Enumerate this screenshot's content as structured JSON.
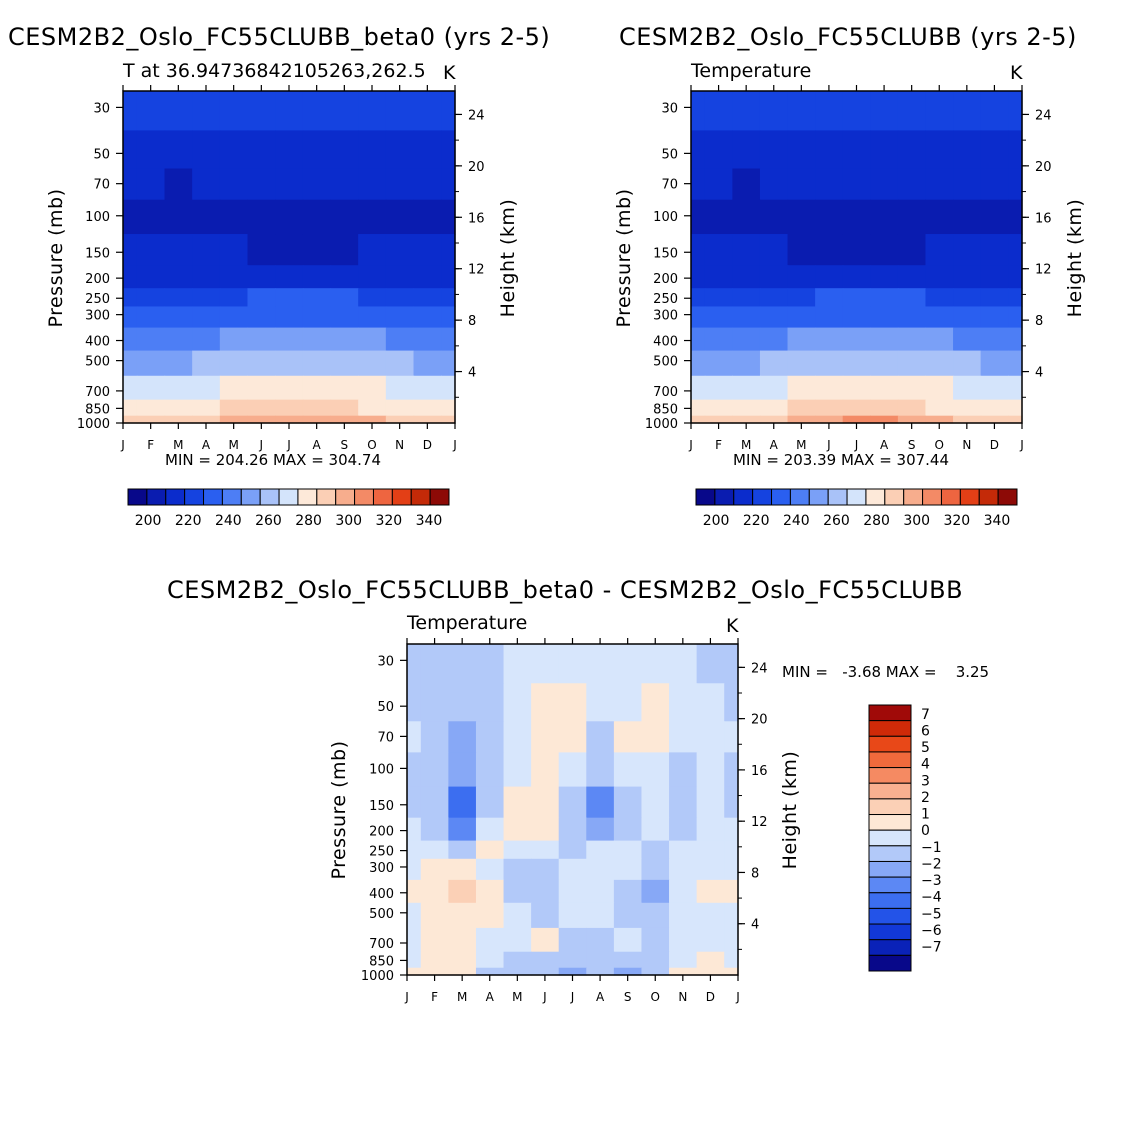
{
  "panels": [
    {
      "title": "CESM2B2_Oslo_FC55CLUBB_beta0 (yrs 2-5)",
      "left_label": "T at 36.94736842105263,262.5",
      "right_label": "K",
      "stats": "MIN = 204.26 MAX = 304.74",
      "ylabel": "Pressure (mb)",
      "ylabel2": "Height (km)"
    },
    {
      "title": "CESM2B2_Oslo_FC55CLUBB (yrs 2-5)",
      "left_label": "Temperature",
      "right_label": "K",
      "stats": "MIN = 203.39 MAX = 307.44",
      "ylabel": "Pressure (mb)",
      "ylabel2": "Height (km)"
    },
    {
      "title": "CESM2B2_Oslo_FC55CLUBB_beta0 - CESM2B2_Oslo_FC55CLUBB",
      "left_label": "Temperature",
      "right_label": "K",
      "stats": "MIN =   -3.68 MAX =    3.25",
      "ylabel": "Pressure (mb)",
      "ylabel2": "Height (km)"
    }
  ],
  "chart_data": [
    {
      "type": "heatmap",
      "title": "CESM2B2_Oslo_FC55CLUBB_beta0 (yrs 2-5)",
      "subtitle": "T at 36.94736842105263,262.5",
      "units": "K",
      "xlabel": "",
      "ylabel": "Pressure (mb)",
      "ylabel_right": "Height (km)",
      "x_ticks": [
        "J",
        "F",
        "M",
        "A",
        "M",
        "J",
        "J",
        "A",
        "S",
        "O",
        "N",
        "D",
        "J"
      ],
      "y_ticks": [
        "30",
        "50",
        "70",
        "100",
        "150",
        "200",
        "250",
        "300",
        "400",
        "500",
        "700",
        "850",
        "1000"
      ],
      "y2_ticks": [
        "24",
        "20",
        "16",
        "12",
        "8",
        "4"
      ],
      "levels_hpa": [
        30,
        50,
        70,
        100,
        150,
        200,
        250,
        300,
        400,
        500,
        700,
        850,
        1000
      ],
      "approx_values_K": [
        [
          219,
          219,
          219,
          220,
          220,
          220,
          221,
          221,
          220,
          219,
          219,
          219,
          219
        ],
        [
          212,
          211,
          210,
          211,
          212,
          213,
          214,
          214,
          214,
          213,
          212,
          211,
          212
        ],
        [
          210,
          209,
          208,
          209,
          209,
          209,
          209,
          209,
          209,
          209,
          209,
          209,
          210
        ],
        [
          208,
          207,
          206,
          207,
          207,
          207,
          207,
          207,
          207,
          207,
          207,
          207,
          208
        ],
        [
          213,
          211,
          209,
          210,
          209,
          208,
          208,
          208,
          208,
          209,
          210,
          211,
          213
        ],
        [
          217,
          216,
          215,
          215,
          214,
          213,
          213,
          213,
          214,
          214,
          215,
          216,
          217
        ],
        [
          223,
          224,
          225,
          226,
          227,
          228,
          229,
          229,
          228,
          227,
          226,
          224,
          223
        ],
        [
          229,
          230,
          231,
          232,
          234,
          236,
          237,
          237,
          236,
          234,
          232,
          230,
          229
        ],
        [
          241,
          242,
          243,
          245,
          247,
          249,
          250,
          250,
          249,
          247,
          245,
          243,
          241
        ],
        [
          252,
          253,
          254,
          256,
          258,
          260,
          261,
          261,
          260,
          258,
          256,
          254,
          252
        ],
        [
          268,
          269,
          271,
          273,
          276,
          278,
          279,
          279,
          278,
          275,
          272,
          270,
          268
        ],
        [
          276,
          277,
          279,
          282,
          285,
          288,
          289,
          289,
          288,
          284,
          281,
          278,
          276
        ],
        [
          285,
          287,
          289,
          292,
          296,
          300,
          302,
          302,
          300,
          296,
          291,
          288,
          285
        ]
      ],
      "stats": "MIN = 204.26 MAX = 304.74",
      "colorbar_ticks": [
        "200",
        "220",
        "240",
        "260",
        "280",
        "300",
        "320",
        "340"
      ],
      "colorbar_range": [
        190,
        350
      ]
    },
    {
      "type": "heatmap",
      "title": "CESM2B2_Oslo_FC55CLUBB (yrs 2-5)",
      "subtitle": "Temperature",
      "units": "K",
      "xlabel": "",
      "ylabel": "Pressure (mb)",
      "ylabel_right": "Height (km)",
      "x_ticks": [
        "J",
        "F",
        "M",
        "A",
        "M",
        "J",
        "J",
        "A",
        "S",
        "O",
        "N",
        "D",
        "J"
      ],
      "y_ticks": [
        "30",
        "50",
        "70",
        "100",
        "150",
        "200",
        "250",
        "300",
        "400",
        "500",
        "700",
        "850",
        "1000"
      ],
      "y2_ticks": [
        "24",
        "20",
        "16",
        "12",
        "8",
        "4"
      ],
      "levels_hpa": [
        30,
        50,
        70,
        100,
        150,
        200,
        250,
        300,
        400,
        500,
        700,
        850,
        1000
      ],
      "approx_values_K": [
        [
          219,
          219,
          219,
          220,
          220,
          220,
          221,
          221,
          220,
          219,
          219,
          219,
          219
        ],
        [
          212,
          211,
          210,
          211,
          212,
          213,
          214,
          214,
          214,
          213,
          212,
          211,
          212
        ],
        [
          210,
          209,
          208,
          209,
          209,
          209,
          209,
          209,
          209,
          209,
          209,
          209,
          210
        ],
        [
          208,
          207,
          206,
          207,
          207,
          207,
          207,
          207,
          207,
          207,
          207,
          207,
          208
        ],
        [
          213,
          211,
          209,
          209,
          208,
          208,
          208,
          208,
          208,
          209,
          210,
          211,
          213
        ],
        [
          217,
          216,
          215,
          215,
          214,
          213,
          213,
          213,
          214,
          214,
          215,
          216,
          217
        ],
        [
          223,
          224,
          225,
          226,
          227,
          228,
          229,
          229,
          228,
          227,
          226,
          224,
          223
        ],
        [
          229,
          230,
          231,
          232,
          234,
          236,
          237,
          237,
          236,
          234,
          232,
          230,
          229
        ],
        [
          241,
          242,
          243,
          245,
          247,
          249,
          250,
          250,
          249,
          247,
          245,
          243,
          241
        ],
        [
          252,
          253,
          254,
          256,
          258,
          260,
          261,
          261,
          260,
          258,
          256,
          254,
          252
        ],
        [
          268,
          269,
          271,
          273,
          276,
          278,
          279,
          279,
          278,
          275,
          272,
          270,
          268
        ],
        [
          276,
          277,
          279,
          282,
          285,
          288,
          289,
          289,
          288,
          284,
          281,
          278,
          276
        ],
        [
          285,
          287,
          289,
          292,
          296,
          300,
          303,
          303,
          300,
          296,
          291,
          288,
          285
        ]
      ],
      "stats": "MIN = 203.39 MAX = 307.44",
      "colorbar_ticks": [
        "200",
        "220",
        "240",
        "260",
        "280",
        "300",
        "320",
        "340"
      ],
      "colorbar_range": [
        190,
        350
      ]
    },
    {
      "type": "heatmap",
      "title": "CESM2B2_Oslo_FC55CLUBB_beta0 - CESM2B2_Oslo_FC55CLUBB",
      "subtitle": "Temperature",
      "units": "K",
      "xlabel": "",
      "ylabel": "Pressure (mb)",
      "ylabel_right": "Height (km)",
      "x_ticks": [
        "J",
        "F",
        "M",
        "A",
        "M",
        "J",
        "J",
        "A",
        "S",
        "O",
        "N",
        "D",
        "J"
      ],
      "y_ticks": [
        "30",
        "50",
        "70",
        "100",
        "150",
        "200",
        "250",
        "300",
        "400",
        "500",
        "700",
        "850",
        "1000"
      ],
      "y2_ticks": [
        "24",
        "20",
        "16",
        "12",
        "8",
        "4"
      ],
      "levels_hpa": [
        30,
        50,
        70,
        100,
        150,
        200,
        250,
        300,
        400,
        500,
        700,
        850,
        1000
      ],
      "approx_values_K": [
        [
          -0.5,
          -0.5,
          -1.2,
          -0.8,
          -0.3,
          -0.3,
          0.4,
          -0.3,
          -0.4,
          -0.3,
          -0.3,
          -0.5,
          -1.2
        ],
        [
          -0.5,
          -0.6,
          -1.3,
          -1.0,
          -0.3,
          0.5,
          0.6,
          -0.3,
          0.4,
          0.5,
          -0.3,
          -0.4,
          -0.5
        ],
        [
          -0.4,
          -0.7,
          -1.5,
          -0.8,
          -0.2,
          0.6,
          1.2,
          -0.5,
          0.5,
          0.6,
          -0.3,
          -0.3,
          -0.4
        ],
        [
          -0.5,
          -0.8,
          -2.0,
          -0.6,
          0.4,
          0.7,
          -0.4,
          -0.8,
          0.3,
          0.4,
          -0.6,
          -0.4,
          -0.5
        ],
        [
          -0.6,
          -0.9,
          -3.5,
          -0.5,
          0.5,
          1.2,
          -1.2,
          -2.8,
          -0.6,
          0.3,
          -0.9,
          -0.3,
          -0.6
        ],
        [
          -0.4,
          -0.7,
          -2.5,
          0.3,
          0.6,
          0.6,
          -1.0,
          -1.5,
          -0.5,
          -0.3,
          -0.5,
          -0.3,
          -0.4
        ],
        [
          0.3,
          0.4,
          -0.5,
          0.5,
          0.3,
          -0.4,
          -0.6,
          -0.3,
          -0.4,
          -0.5,
          -0.3,
          0.3,
          0.3
        ],
        [
          0.4,
          0.6,
          0.8,
          0.3,
          -0.5,
          -0.5,
          -0.3,
          0.4,
          -0.3,
          -1.0,
          -0.3,
          0.4,
          0.4
        ],
        [
          0.5,
          0.8,
          1.5,
          0.6,
          -0.6,
          -1.0,
          -0.3,
          -0.3,
          -0.6,
          -1.6,
          0.3,
          0.5,
          0.5
        ],
        [
          0.4,
          0.7,
          1.2,
          0.5,
          -0.4,
          -0.9,
          -0.3,
          -0.3,
          -0.6,
          -1.3,
          0.3,
          0.4,
          0.4
        ],
        [
          0.3,
          0.5,
          0.8,
          -0.3,
          -0.3,
          0.6,
          -0.8,
          -0.5,
          -0.4,
          -0.9,
          0.3,
          0.3,
          0.3
        ],
        [
          0.4,
          0.6,
          0.6,
          -0.4,
          -0.5,
          -0.6,
          -1.3,
          -0.8,
          -1.0,
          -0.8,
          0.4,
          0.5,
          0.4
        ],
        [
          0.5,
          0.8,
          1.0,
          -0.5,
          -0.5,
          -0.9,
          -1.8,
          -1.0,
          -1.5,
          -0.9,
          0.5,
          0.6,
          0.5
        ]
      ],
      "stats": "MIN =   -3.68 MAX =    3.25",
      "colorbar_ticks": [
        "7",
        "6",
        "5",
        "4",
        "3",
        "2",
        "1",
        "0",
        "-1",
        "-2",
        "-3",
        "-4",
        "-5",
        "-6",
        "-7"
      ],
      "colorbar_range": [
        -8,
        8
      ]
    }
  ],
  "colors": {
    "temp_palette": [
      "#08088a",
      "#0a1cb0",
      "#0b2ccc",
      "#1543e0",
      "#2a5ff0",
      "#4d7ef5",
      "#7aa0f7",
      "#a9c2f8",
      "#d4e4fb",
      "#fde9d9",
      "#fbcfb5",
      "#f7ad8d",
      "#f38a66",
      "#ee6540",
      "#e33f16",
      "#c42a08",
      "#8d0a06"
    ],
    "diff_palette": [
      "#08088a",
      "#0a22b8",
      "#1238d8",
      "#2353e8",
      "#3c6ef0",
      "#5c88f4",
      "#87a8f6",
      "#b2c9f9",
      "#d7e6fc",
      "#fde8d6",
      "#fbd0b6",
      "#f8b090",
      "#f58a62",
      "#f06a3c",
      "#e84818",
      "#cf2a08",
      "#a00a08"
    ]
  }
}
